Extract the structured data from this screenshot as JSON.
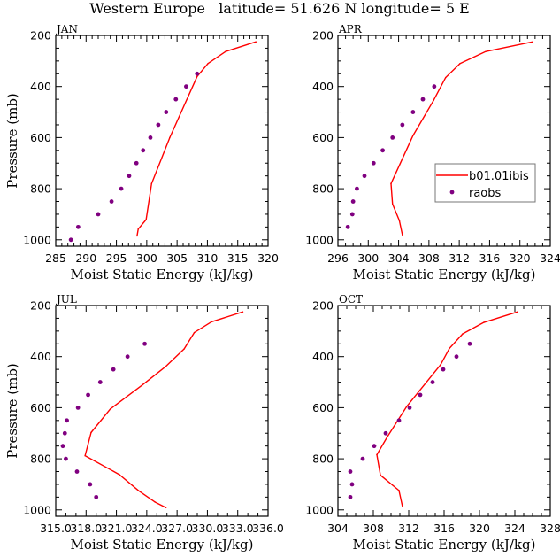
{
  "figure": {
    "title": "Western Europe   latitude= 51.626 N longitude= 5 E"
  },
  "legend": {
    "entries": [
      {
        "label": "b01.01ibis",
        "kind": "line",
        "color": "#ff0000"
      },
      {
        "label": "raobs",
        "kind": "marker",
        "color": "#800080"
      }
    ],
    "placement": "APR panel, lower-right"
  },
  "colors": {
    "model": "#ff0000",
    "obs": "#800080",
    "axis": "#000000"
  },
  "chart_data": [
    {
      "type": "line",
      "title": "JAN",
      "xlabel": "Moist Static Energy (kJ/kg)",
      "ylabel": "Pressure (mb)",
      "xlim": [
        285,
        320
      ],
      "ylim": [
        200,
        1025
      ],
      "y_inverted": true,
      "xticks": [
        285,
        290,
        295,
        300,
        305,
        310,
        315,
        320
      ],
      "xtick_labels": [
        "285",
        "290",
        "295",
        "300",
        "305",
        "310",
        "315",
        "320"
      ],
      "x_minor_step": 1,
      "yticks": [
        200,
        400,
        600,
        800,
        1000
      ],
      "ytick_labels": [
        "200",
        "400",
        "600",
        "800",
        "1000"
      ],
      "y_minor_step": 50,
      "show_ylabel": true,
      "series": [
        {
          "name": "b01.01ibis",
          "kind": "line",
          "x": [
            318.0,
            313.0,
            310.1,
            308.3,
            303.8,
            300.8,
            299.9,
            298.6,
            298.4
          ],
          "y": [
            225,
            263,
            310,
            361,
            600,
            780,
            921,
            958,
            985
          ]
        },
        {
          "name": "raobs",
          "kind": "scatter",
          "x": [
            308.3,
            306.5,
            304.8,
            303.2,
            301.9,
            300.6,
            299.4,
            298.3,
            297.1,
            295.8,
            294.2,
            292.0,
            288.7,
            287.5
          ],
          "y": [
            350,
            400,
            450,
            500,
            550,
            600,
            650,
            700,
            750,
            800,
            850,
            900,
            950,
            1000
          ]
        }
      ]
    },
    {
      "type": "line",
      "title": "APR",
      "xlabel": "Moist Static Energy (kJ/kg)",
      "ylabel": "",
      "xlim": [
        296,
        324
      ],
      "ylim": [
        200,
        1025
      ],
      "y_inverted": true,
      "xticks": [
        296,
        300,
        304,
        308,
        312,
        316,
        320,
        324
      ],
      "xtick_labels": [
        "296",
        "300",
        "304",
        "308",
        "312",
        "316",
        "320",
        "324"
      ],
      "x_minor_step": 1,
      "yticks": [
        200,
        400,
        600,
        800,
        1000
      ],
      "ytick_labels": [
        "200",
        "400",
        "600",
        "800",
        "1000"
      ],
      "y_minor_step": 50,
      "show_ylabel": false,
      "has_legend": true,
      "series": [
        {
          "name": "b01.01ibis",
          "kind": "line",
          "x": [
            321.7,
            315.5,
            312.1,
            310.2,
            308.6,
            305.9,
            303.0,
            303.2,
            304.1,
            304.5
          ],
          "y": [
            225,
            263,
            310,
            365,
            455,
            592,
            780,
            860,
            925,
            981
          ]
        },
        {
          "name": "raobs",
          "kind": "scatter",
          "x": [
            308.7,
            307.2,
            305.9,
            304.5,
            303.2,
            301.9,
            300.7,
            299.5,
            298.5,
            298.0,
            297.9,
            297.3
          ],
          "y": [
            400,
            450,
            500,
            550,
            600,
            650,
            700,
            750,
            800,
            850,
            900,
            950
          ]
        }
      ]
    },
    {
      "type": "line",
      "title": "JUL",
      "xlabel": "Moist Static Energy (kJ/kg)",
      "ylabel": "Pressure (mb)",
      "xlim": [
        315,
        336
      ],
      "ylim": [
        200,
        1025
      ],
      "y_inverted": true,
      "xticks": [
        315,
        318,
        321,
        324,
        327,
        330,
        333,
        336
      ],
      "xtick_labels": [
        "315.0",
        "318.0",
        "321.0",
        "324.0",
        "327.0",
        "330.0",
        "333.0",
        "336.0"
      ],
      "x_minor_step": 1,
      "yticks": [
        200,
        400,
        600,
        800,
        1000
      ],
      "ytick_labels": [
        "200",
        "400",
        "600",
        "800",
        "1000"
      ],
      "y_minor_step": 50,
      "show_ylabel": true,
      "series": [
        {
          "name": "b01.01ibis",
          "kind": "line",
          "x": [
            333.5,
            330.4,
            328.7,
            327.7,
            325.9,
            323.6,
            320.4,
            318.5,
            317.9,
            321.3,
            323.2,
            324.8,
            325.9
          ],
          "y": [
            225,
            264,
            306,
            370,
            438,
            510,
            605,
            697,
            788,
            862,
            925,
            969,
            991
          ]
        },
        {
          "name": "raobs",
          "kind": "scatter",
          "x": [
            323.8,
            322.1,
            320.7,
            319.4,
            318.2,
            317.2,
            316.1,
            315.9,
            315.7,
            316.0,
            317.1,
            318.4,
            319.0
          ],
          "y": [
            350,
            400,
            450,
            500,
            550,
            600,
            650,
            700,
            750,
            800,
            850,
            900,
            950
          ]
        }
      ]
    },
    {
      "type": "line",
      "title": "OCT",
      "xlabel": "Moist Static Energy (kJ/kg)",
      "ylabel": "",
      "xlim": [
        304,
        328
      ],
      "ylim": [
        200,
        1025
      ],
      "y_inverted": true,
      "xticks": [
        304,
        308,
        312,
        316,
        320,
        324,
        328
      ],
      "xtick_labels": [
        "304",
        "308",
        "312",
        "316",
        "320",
        "324",
        "328"
      ],
      "x_minor_step": 1,
      "yticks": [
        200,
        400,
        600,
        800,
        1000
      ],
      "ytick_labels": [
        "200",
        "400",
        "600",
        "800",
        "1000"
      ],
      "y_minor_step": 50,
      "show_ylabel": false,
      "series": [
        {
          "name": "b01.01ibis",
          "kind": "line",
          "x": [
            324.3,
            320.5,
            318.1,
            316.6,
            315.6,
            311.8,
            309.6,
            308.4,
            308.8,
            310.9,
            311.3
          ],
          "y": [
            225,
            266,
            311,
            368,
            432,
            594,
            713,
            784,
            864,
            924,
            988
          ]
        },
        {
          "name": "raobs",
          "kind": "scatter",
          "x": [
            318.9,
            317.4,
            315.9,
            314.7,
            313.3,
            312.1,
            310.9,
            309.4,
            308.1,
            306.8,
            305.4,
            305.6,
            305.4
          ],
          "y": [
            350,
            400,
            450,
            500,
            550,
            600,
            650,
            700,
            750,
            800,
            850,
            900,
            950
          ]
        }
      ]
    }
  ]
}
